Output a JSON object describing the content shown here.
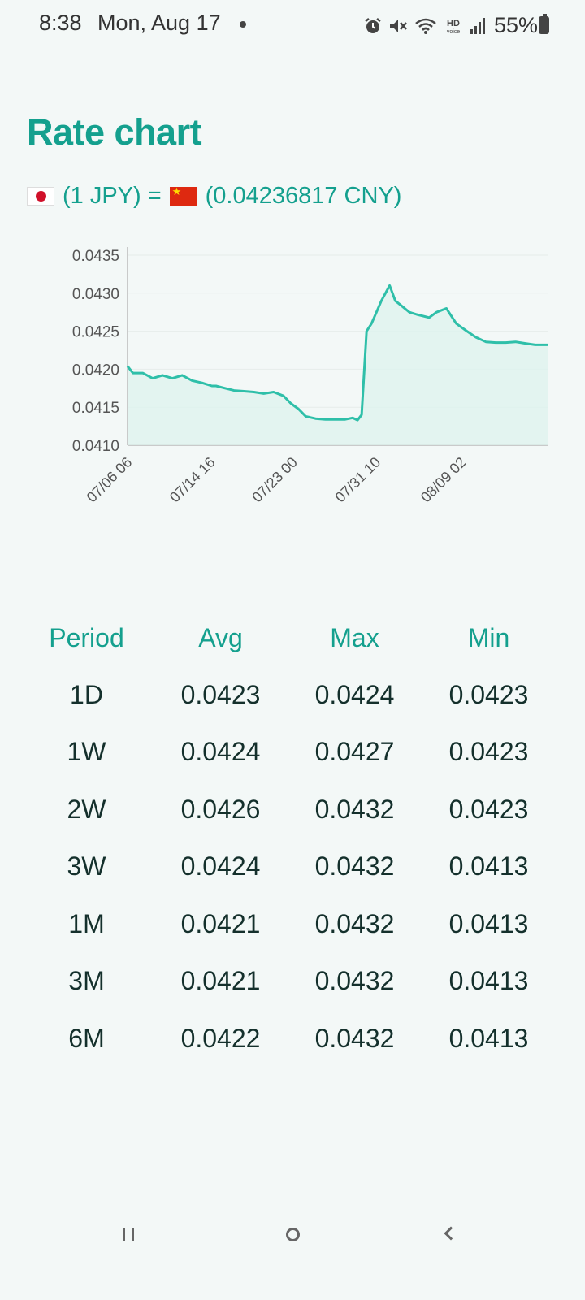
{
  "status": {
    "time": "8:38",
    "date": "Mon, Aug 17",
    "battery": "55%",
    "icons": [
      "alarm-icon",
      "mute-icon",
      "wifi-icon",
      "hd-voice-icon",
      "signal-icon",
      "battery-icon"
    ]
  },
  "title": "Rate chart",
  "rate": {
    "from_flag": "japan-flag-icon",
    "from_text": "(1 JPY)",
    "equals": "=",
    "to_flag": "china-flag-icon",
    "to_text": "(0.04236817 CNY)"
  },
  "colors": {
    "accent": "#14a08e",
    "line": "#2fbfa9",
    "fill": "#dff2ee"
  },
  "chart_data": {
    "type": "line",
    "ylim": [
      0.041,
      0.0435
    ],
    "yticks": [
      "0.0435",
      "0.0430",
      "0.0425",
      "0.0420",
      "0.0415",
      "0.0410"
    ],
    "xticks": [
      "07/06 06",
      "07/14 16",
      "07/23 00",
      "07/31 10",
      "08/09 02"
    ],
    "grid": "horizontal",
    "series": [
      {
        "x": [
          "07/05 17",
          "07/06 06",
          "07/07 06",
          "07/08 06",
          "07/09 06",
          "07/10 06",
          "07/11 06",
          "07/12 06",
          "07/13 06",
          "07/14 06",
          "07/14 16",
          "07/15 14",
          "07/16 12",
          "07/17 12",
          "07/18 12",
          "07/19 12",
          "07/20 12",
          "07/21 12",
          "07/22 06",
          "07/23 00",
          "07/23 18",
          "07/24 18",
          "07/25 18",
          "07/26 18",
          "07/27 18",
          "07/28 12",
          "07/29 00",
          "07/29 10",
          "07/29 22",
          "07/30 10",
          "07/31 10",
          "08/01 06",
          "08/01 20",
          "08/02 12",
          "08/03 06",
          "08/04 00",
          "08/05 06",
          "08/06 00",
          "08/07 00",
          "08/08 00",
          "08/09 02",
          "08/10 00",
          "08/11 00",
          "08/12 00",
          "08/13 00",
          "08/14 00",
          "08/15 00",
          "08/16 00",
          "08/17 06"
        ],
        "values": [
          0.04204,
          0.04195,
          0.04195,
          0.04188,
          0.04192,
          0.04188,
          0.04192,
          0.04185,
          0.04182,
          0.04178,
          0.04178,
          0.04175,
          0.04172,
          0.04171,
          0.0417,
          0.04168,
          0.0417,
          0.04165,
          0.04155,
          0.04148,
          0.04138,
          0.04135,
          0.04134,
          0.04134,
          0.04134,
          0.04136,
          0.04133,
          0.0414,
          0.0425,
          0.0426,
          0.0429,
          0.0431,
          0.0429,
          0.04283,
          0.04275,
          0.04272,
          0.04268,
          0.04275,
          0.0428,
          0.0426,
          0.0425,
          0.04242,
          0.04236,
          0.04235,
          0.04235,
          0.04236,
          0.04234,
          0.04232,
          0.04232
        ]
      }
    ]
  },
  "stats": {
    "headers": [
      "Period",
      "Avg",
      "Max",
      "Min"
    ],
    "rows": [
      [
        "1D",
        "0.0423",
        "0.0424",
        "0.0423"
      ],
      [
        "1W",
        "0.0424",
        "0.0427",
        "0.0423"
      ],
      [
        "2W",
        "0.0426",
        "0.0432",
        "0.0423"
      ],
      [
        "3W",
        "0.0424",
        "0.0432",
        "0.0413"
      ],
      [
        "1M",
        "0.0421",
        "0.0432",
        "0.0413"
      ],
      [
        "3M",
        "0.0421",
        "0.0432",
        "0.0413"
      ],
      [
        "6M",
        "0.0422",
        "0.0432",
        "0.0413"
      ]
    ]
  },
  "nav": {
    "recent": "recent-apps-icon",
    "home": "home-icon",
    "back": "back-icon"
  }
}
